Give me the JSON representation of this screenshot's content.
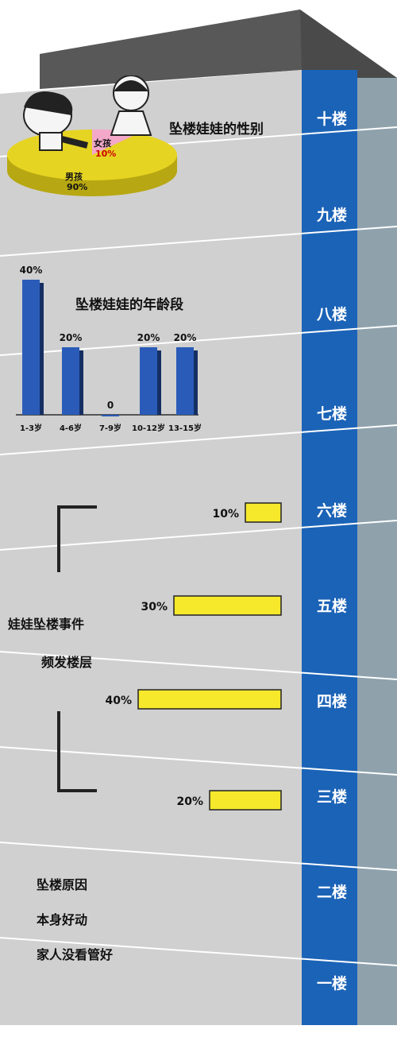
{
  "colors": {
    "wall": "#cfcfcf",
    "wall_light": "#e3e3e3",
    "roof": "#505050",
    "floor_column": "#1b63b7",
    "side_column": "#8fa2ac",
    "bar_blue": "#2a5bb8",
    "bar_yellow": "#f6e92c",
    "pie_yellow": "#e6d422",
    "pie_pink": "#f3a8c9"
  },
  "floors": [
    "十楼",
    "九楼",
    "八楼",
    "七楼",
    "六楼",
    "五楼",
    "四楼",
    "三楼",
    "二楼",
    "一楼"
  ],
  "chart_data": [
    {
      "type": "pie",
      "title": "坠楼娃娃的性别",
      "labels": [
        "男孩",
        "女孩"
      ],
      "values": [
        90,
        10
      ],
      "value_labels": [
        "90%",
        "10%"
      ]
    },
    {
      "type": "bar",
      "title": "坠楼娃娃的年龄段",
      "categories": [
        "1-3岁",
        "4-6岁",
        "7-9岁",
        "10-12岁",
        "13-15岁"
      ],
      "values": [
        40,
        20,
        0,
        20,
        20
      ],
      "value_labels": [
        "40%",
        "20%",
        "0",
        "20%",
        "20%"
      ],
      "ylim": [
        0,
        40
      ]
    },
    {
      "type": "bar",
      "orientation": "horizontal",
      "title": "娃娃坠楼事件",
      "subtitle": "频发楼层",
      "categories": [
        "六楼",
        "五楼",
        "四楼",
        "三楼"
      ],
      "values": [
        10,
        30,
        40,
        20
      ],
      "value_labels": [
        "10%",
        "30%",
        "40%",
        "20%"
      ]
    }
  ],
  "cause": {
    "title": "坠楼原因",
    "items": [
      "本身好动",
      "家人没看管好"
    ]
  }
}
